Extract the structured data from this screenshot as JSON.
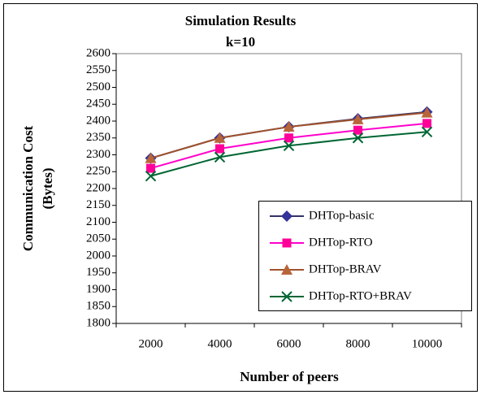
{
  "chart_data": {
    "type": "line",
    "title": "Simulation Results",
    "subtitle": "k=10",
    "xlabel": "Number of peers",
    "ylabel": [
      "Communication Cost",
      "(Bytes)"
    ],
    "categories": [
      "2000",
      "4000",
      "6000",
      "8000",
      "10000"
    ],
    "series": [
      {
        "name": "DHTop-basic",
        "color": "#333366",
        "marker_color": "#333399",
        "marker": "diamond",
        "values": [
          2290,
          2350,
          2383,
          2407,
          2427
        ]
      },
      {
        "name": "DHTop-RTO",
        "color": "#ff00cc",
        "marker_color": "#ff0099",
        "marker": "square",
        "values": [
          2260,
          2318,
          2350,
          2373,
          2393
        ]
      },
      {
        "name": "DHTop-BRAV",
        "color": "#a0522d",
        "marker_color": "#b8653a",
        "marker": "triangle",
        "values": [
          2290,
          2350,
          2383,
          2405,
          2425
        ]
      },
      {
        "name": "DHTop-RTO+BRAV",
        "color": "#006633",
        "marker_color": "#006633",
        "marker": "x",
        "values": [
          2237,
          2293,
          2327,
          2350,
          2368
        ]
      }
    ],
    "ylim": [
      1800,
      2600
    ],
    "yticks": [
      1800,
      1850,
      1900,
      1950,
      2000,
      2050,
      2100,
      2150,
      2200,
      2250,
      2300,
      2350,
      2400,
      2450,
      2500,
      2550,
      2600
    ],
    "legend": "lower right"
  }
}
